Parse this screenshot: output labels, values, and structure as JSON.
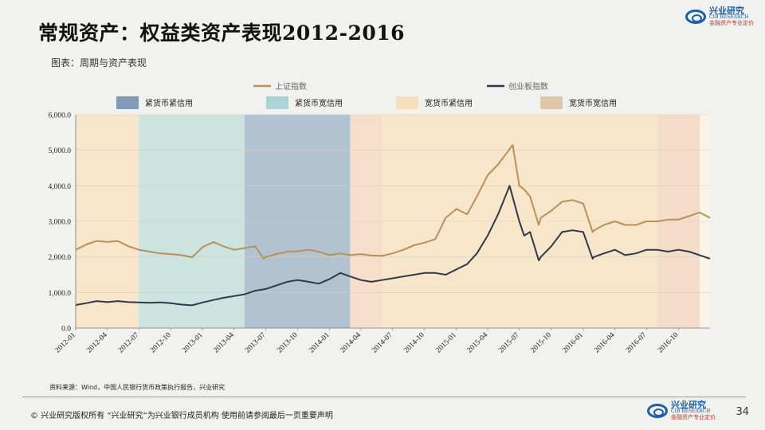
{
  "title": "常规资产：权益类资产表现2012-2016",
  "subtitle": "图表：周期与资产表现",
  "logo": {
    "cn": "兴业研究",
    "en": "CIB RESEARCH",
    "tag": "金融资产专业定价"
  },
  "source": "资料来源：Wind，中国人民银行货币政策执行报告，兴业研究",
  "footer": "©  兴业研究版权所有  “兴业研究”为兴业银行成员机构  使用前请参阅最后一页重要声明",
  "page_number": "34",
  "chart_data": {
    "type": "line",
    "ylim": [
      0,
      6000
    ],
    "yticks": [
      "0.0",
      "1,000.0",
      "2,000.0",
      "3,000.0",
      "4,000.0",
      "5,000.0",
      "6,000.0"
    ],
    "x_range": [
      "2012-01",
      "2016-12"
    ],
    "xticks": [
      "2012-01",
      "2012-04",
      "2012-07",
      "2012-10",
      "2013-01",
      "2013-04",
      "2013-07",
      "2013-10",
      "2014-01",
      "2014-04",
      "2014-07",
      "2014-10",
      "2015-01",
      "2015-04",
      "2015-07",
      "2015-10",
      "2016-01",
      "2016-04",
      "2016-07",
      "2016-10"
    ],
    "legend_series": [
      "上证指数",
      "创业板指数"
    ],
    "legend_regimes": [
      {
        "label": "紧货币紧信用",
        "color": "#7f9bb5"
      },
      {
        "label": "紧货币宽信用",
        "color": "#a9d3d4"
      },
      {
        "label": "宽货币紧信用",
        "color": "#f7dfbd"
      },
      {
        "label": "宽货币宽信用",
        "color": "#e0c9a8"
      }
    ],
    "regimes": [
      {
        "start": "2012-01",
        "end": "2012-07",
        "color": "#f7e4c8"
      },
      {
        "start": "2012-07",
        "end": "2013-05",
        "color": "#c5e2df"
      },
      {
        "start": "2013-05",
        "end": "2014-03",
        "color": "#a9bdcd"
      },
      {
        "start": "2014-03",
        "end": "2014-06",
        "color": "#f5dcc8"
      },
      {
        "start": "2014-06",
        "end": "2016-08",
        "color": "#f7e4c8"
      },
      {
        "start": "2016-08",
        "end": "2016-12",
        "color": "#f3d9c4"
      }
    ],
    "series": [
      {
        "name": "上证指数",
        "color": "#b89158",
        "points": [
          [
            "2012-01-01",
            2200
          ],
          [
            "2012-02-01",
            2350
          ],
          [
            "2012-03-01",
            2450
          ],
          [
            "2012-04-01",
            2420
          ],
          [
            "2012-05-01",
            2450
          ],
          [
            "2012-06-01",
            2300
          ],
          [
            "2012-07-01",
            2200
          ],
          [
            "2012-08-01",
            2150
          ],
          [
            "2012-09-01",
            2100
          ],
          [
            "2012-10-01",
            2080
          ],
          [
            "2012-11-01",
            2050
          ],
          [
            "2012-12-01",
            1990
          ],
          [
            "2013-01-01",
            2280
          ],
          [
            "2013-02-01",
            2420
          ],
          [
            "2013-03-01",
            2300
          ],
          [
            "2013-04-01",
            2200
          ],
          [
            "2013-05-01",
            2250
          ],
          [
            "2013-06-01",
            2300
          ],
          [
            "2013-06-25",
            1950
          ],
          [
            "2013-07-01",
            2000
          ],
          [
            "2013-08-01",
            2080
          ],
          [
            "2013-09-01",
            2150
          ],
          [
            "2013-10-01",
            2160
          ],
          [
            "2013-11-01",
            2200
          ],
          [
            "2013-12-01",
            2150
          ],
          [
            "2014-01-01",
            2050
          ],
          [
            "2014-02-01",
            2100
          ],
          [
            "2014-03-01",
            2050
          ],
          [
            "2014-04-01",
            2080
          ],
          [
            "2014-05-01",
            2040
          ],
          [
            "2014-06-01",
            2030
          ],
          [
            "2014-07-01",
            2100
          ],
          [
            "2014-08-01",
            2200
          ],
          [
            "2014-09-01",
            2330
          ],
          [
            "2014-10-01",
            2400
          ],
          [
            "2014-11-01",
            2500
          ],
          [
            "2014-12-01",
            3100
          ],
          [
            "2015-01-01",
            3350
          ],
          [
            "2015-02-01",
            3200
          ],
          [
            "2015-03-01",
            3700
          ],
          [
            "2015-04-01",
            4300
          ],
          [
            "2015-05-01",
            4600
          ],
          [
            "2015-06-12",
            5150
          ],
          [
            "2015-07-01",
            4000
          ],
          [
            "2015-07-15",
            3900
          ],
          [
            "2015-08-01",
            3700
          ],
          [
            "2015-08-26",
            2900
          ],
          [
            "2015-09-01",
            3100
          ],
          [
            "2015-10-01",
            3300
          ],
          [
            "2015-11-01",
            3550
          ],
          [
            "2015-12-01",
            3600
          ],
          [
            "2016-01-01",
            3500
          ],
          [
            "2016-01-28",
            2700
          ],
          [
            "2016-02-01",
            2750
          ],
          [
            "2016-03-01",
            2900
          ],
          [
            "2016-04-01",
            3000
          ],
          [
            "2016-05-01",
            2900
          ],
          [
            "2016-06-01",
            2900
          ],
          [
            "2016-07-01",
            3000
          ],
          [
            "2016-08-01",
            3000
          ],
          [
            "2016-09-01",
            3050
          ],
          [
            "2016-10-01",
            3050
          ],
          [
            "2016-11-01",
            3150
          ],
          [
            "2016-12-01",
            3250
          ],
          [
            "2016-12-31",
            3100
          ]
        ]
      },
      {
        "name": "创业板指数",
        "color": "#2e3a4b",
        "points": [
          [
            "2012-01-01",
            650
          ],
          [
            "2012-02-01",
            700
          ],
          [
            "2012-03-01",
            760
          ],
          [
            "2012-04-01",
            730
          ],
          [
            "2012-05-01",
            760
          ],
          [
            "2012-06-01",
            730
          ],
          [
            "2012-07-01",
            720
          ],
          [
            "2012-08-01",
            710
          ],
          [
            "2012-09-01",
            720
          ],
          [
            "2012-10-01",
            700
          ],
          [
            "2012-11-01",
            660
          ],
          [
            "2012-12-01",
            640
          ],
          [
            "2013-01-01",
            720
          ],
          [
            "2013-02-01",
            790
          ],
          [
            "2013-03-01",
            850
          ],
          [
            "2013-04-01",
            900
          ],
          [
            "2013-05-01",
            950
          ],
          [
            "2013-06-01",
            1050
          ],
          [
            "2013-07-01",
            1100
          ],
          [
            "2013-08-01",
            1200
          ],
          [
            "2013-09-01",
            1300
          ],
          [
            "2013-10-01",
            1350
          ],
          [
            "2013-11-01",
            1300
          ],
          [
            "2013-12-01",
            1250
          ],
          [
            "2014-01-01",
            1380
          ],
          [
            "2014-02-01",
            1550
          ],
          [
            "2014-03-01",
            1450
          ],
          [
            "2014-04-01",
            1350
          ],
          [
            "2014-05-01",
            1300
          ],
          [
            "2014-06-01",
            1350
          ],
          [
            "2014-07-01",
            1400
          ],
          [
            "2014-08-01",
            1450
          ],
          [
            "2014-09-01",
            1500
          ],
          [
            "2014-10-01",
            1550
          ],
          [
            "2014-11-01",
            1550
          ],
          [
            "2014-12-01",
            1500
          ],
          [
            "2015-01-01",
            1650
          ],
          [
            "2015-02-01",
            1800
          ],
          [
            "2015-03-01",
            2100
          ],
          [
            "2015-04-01",
            2600
          ],
          [
            "2015-05-01",
            3200
          ],
          [
            "2015-06-03",
            4000
          ],
          [
            "2015-07-01",
            3000
          ],
          [
            "2015-07-15",
            2600
          ],
          [
            "2015-08-01",
            2700
          ],
          [
            "2015-08-26",
            1900
          ],
          [
            "2015-09-01",
            2000
          ],
          [
            "2015-10-01",
            2300
          ],
          [
            "2015-11-01",
            2700
          ],
          [
            "2015-12-01",
            2750
          ],
          [
            "2016-01-01",
            2700
          ],
          [
            "2016-01-28",
            1950
          ],
          [
            "2016-02-01",
            2000
          ],
          [
            "2016-03-01",
            2100
          ],
          [
            "2016-04-01",
            2200
          ],
          [
            "2016-05-01",
            2050
          ],
          [
            "2016-06-01",
            2100
          ],
          [
            "2016-07-01",
            2200
          ],
          [
            "2016-08-01",
            2200
          ],
          [
            "2016-09-01",
            2150
          ],
          [
            "2016-10-01",
            2200
          ],
          [
            "2016-11-01",
            2150
          ],
          [
            "2016-12-01",
            2050
          ],
          [
            "2016-12-31",
            1950
          ]
        ]
      }
    ]
  }
}
